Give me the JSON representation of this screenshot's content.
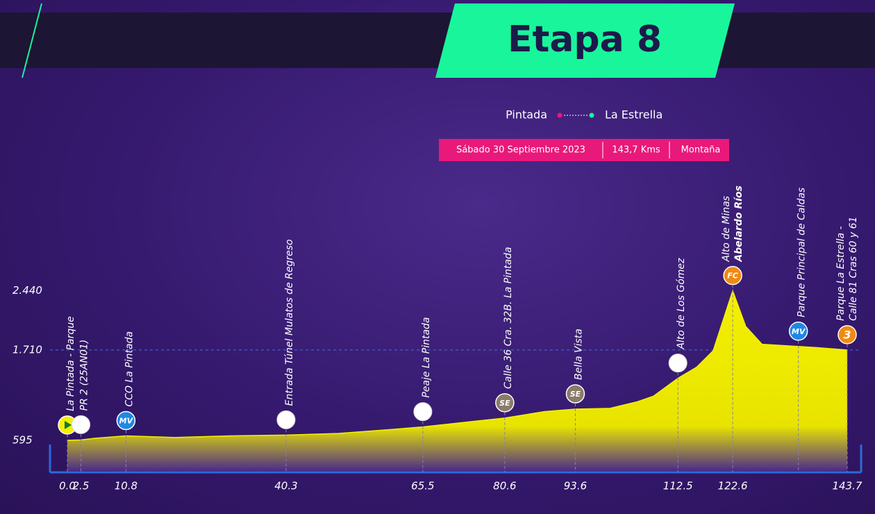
{
  "header": {
    "title": "Etapa 8",
    "from": "Pintada",
    "to": "La Estrella",
    "date": "Sábado 30 Septiembre 2023",
    "distance": "143,7 Kms",
    "stage_type": "Montaña"
  },
  "chart_data": {
    "type": "area",
    "color": "#f4f000",
    "x": [
      0,
      2.5,
      5,
      10.8,
      20,
      30,
      40.3,
      50,
      60,
      65.5,
      75,
      80.6,
      88,
      93.6,
      100,
      105,
      108,
      112.5,
      116,
      119,
      122.6,
      125,
      128,
      133,
      138,
      143.7
    ],
    "values": [
      595,
      600,
      620,
      650,
      630,
      650,
      660,
      680,
      730,
      760,
      830,
      870,
      950,
      980,
      990,
      1070,
      1140,
      1360,
      1500,
      1700,
      2440,
      2000,
      1780,
      1760,
      1740,
      1710
    ],
    "xlim": [
      0,
      143.7
    ],
    "ylim": [
      200,
      2600
    ],
    "xticks": [
      {
        "value": 0,
        "label": "0.0"
      },
      2.5,
      10.8,
      40.3,
      65.5,
      80.6,
      93.6,
      112.5,
      122.6,
      143.7
    ],
    "yticks": [
      595,
      {
        "value": 1710,
        "label": "1.710"
      },
      {
        "value": 2440,
        "label": "2.440"
      }
    ],
    "grid_at": 1710,
    "annotations": [
      {
        "x": 0,
        "label": "La Pintada - Parque",
        "badge": {
          "color": "#f4f000"
        }
      },
      {
        "x": 2.5,
        "label": "PR 2 (25AN01)"
      },
      {
        "x": 10.8,
        "label": "CCO La Pintada",
        "badge": {
          "text": "MV",
          "color": "#1e88e5"
        }
      },
      {
        "x": 40.3,
        "label": "Entrada Túnel Mulatos de Regreso"
      },
      {
        "x": 65.5,
        "label": "Peaje La Pintada"
      },
      {
        "x": 80.6,
        "label": "Calle 36 Cra. 32B. La Pintada",
        "badge": {
          "text": "SE",
          "color": "#8a7a6a"
        }
      },
      {
        "x": 93.6,
        "label": "Bella Vista",
        "badge": {
          "text": "SE",
          "color": "#8a7a6a"
        }
      },
      {
        "x": 112.5,
        "label": "Alto de Los Gómez"
      },
      {
        "x": 122.6,
        "label": "Alto de Minas",
        "sublabel": "Abelardo Ríos",
        "badge": {
          "text": "FC",
          "color": "#f08a14"
        }
      },
      {
        "x": 134.7,
        "label": "Parque Principal de Caldas",
        "badge": {
          "text": "MV",
          "color": "#1e88e5"
        }
      },
      {
        "x": 143.7,
        "label": "Parque La Estrella -",
        "sublabel": "Calle 81 Cras 60 y 61",
        "badge": {
          "text": "3",
          "color": "#f08a14"
        }
      }
    ]
  }
}
